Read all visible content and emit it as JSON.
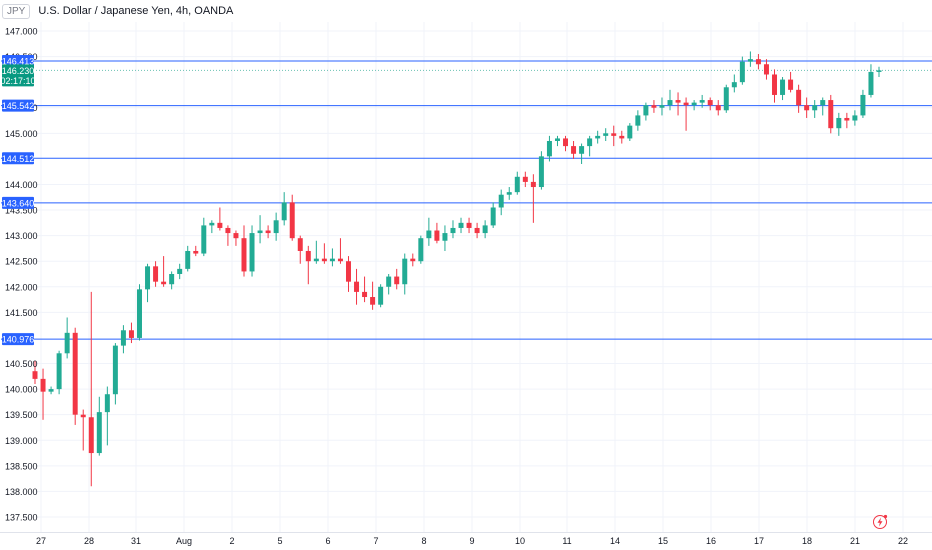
{
  "header": {
    "symbol_short": "JPY",
    "title": "U.S. Dollar / Japanese Yen, 4h, OANDA"
  },
  "colors": {
    "up": "#22ab94",
    "down": "#f23645",
    "hline": "#2962ff",
    "grid": "#f0f3fa",
    "axis_text": "#131722",
    "price_tag": "#089981"
  },
  "icons": [
    "lightning-icon"
  ],
  "chart_data": {
    "type": "candlestick",
    "y_ticks": [
      "147.000",
      "146.500",
      "145.500",
      "145.000",
      "144.000",
      "143.500",
      "143.000",
      "142.500",
      "142.000",
      "141.500",
      "140.500",
      "140.000",
      "139.500",
      "139.000",
      "138.500",
      "138.000",
      "137.500"
    ],
    "x_ticks": [
      "27",
      "28",
      "31",
      "Aug",
      "2",
      "5",
      "6",
      "7",
      "8",
      "9",
      "10",
      "11",
      "14",
      "15",
      "16",
      "17",
      "18",
      "21",
      "22"
    ],
    "horizontal_lines": [
      {
        "value": 146.413,
        "label": "146.413"
      },
      {
        "value": 145.542,
        "label": "145.542"
      },
      {
        "value": 144.512,
        "label": "144.512"
      },
      {
        "value": 143.64,
        "label": "143.640"
      },
      {
        "value": 140.976,
        "label": "140.976"
      }
    ],
    "current_price": {
      "value": 146.23,
      "label": "146.230",
      "countdown": "02:17:10"
    },
    "candles": [
      [
        140.35,
        140.55,
        140.1,
        140.2
      ],
      [
        140.2,
        140.4,
        139.4,
        139.95
      ],
      [
        139.95,
        140.05,
        139.9,
        140.0
      ],
      [
        140.0,
        140.75,
        139.9,
        140.7
      ],
      [
        140.7,
        141.4,
        140.6,
        141.1
      ],
      [
        141.1,
        141.2,
        139.3,
        139.5
      ],
      [
        139.5,
        139.6,
        138.8,
        139.45
      ],
      [
        139.45,
        141.9,
        138.1,
        138.75
      ],
      [
        138.75,
        139.85,
        138.7,
        139.55
      ],
      [
        139.55,
        140.05,
        138.9,
        139.9
      ],
      [
        139.9,
        140.9,
        139.7,
        140.85
      ],
      [
        140.85,
        141.25,
        140.7,
        141.15
      ],
      [
        141.15,
        141.3,
        140.9,
        141.0
      ],
      [
        141.0,
        142.05,
        140.95,
        141.95
      ],
      [
        141.95,
        142.45,
        141.7,
        142.4
      ],
      [
        142.4,
        142.5,
        142.0,
        142.1
      ],
      [
        142.1,
        142.6,
        142.0,
        142.05
      ],
      [
        142.05,
        142.3,
        141.95,
        142.25
      ],
      [
        142.25,
        142.45,
        142.15,
        142.35
      ],
      [
        142.35,
        142.8,
        142.3,
        142.7
      ],
      [
        142.7,
        142.8,
        142.6,
        142.65
      ],
      [
        142.65,
        143.35,
        142.6,
        143.2
      ],
      [
        143.2,
        143.3,
        143.05,
        143.25
      ],
      [
        143.25,
        143.55,
        143.1,
        143.15
      ],
      [
        143.15,
        143.2,
        142.8,
        143.05
      ],
      [
        143.05,
        143.1,
        142.8,
        142.95
      ],
      [
        142.95,
        143.2,
        142.2,
        142.3
      ],
      [
        142.3,
        143.2,
        142.2,
        143.05
      ],
      [
        143.05,
        143.4,
        142.85,
        143.1
      ],
      [
        143.1,
        143.2,
        142.95,
        143.05
      ],
      [
        143.05,
        143.45,
        142.9,
        143.3
      ],
      [
        143.3,
        143.85,
        143.2,
        143.65
      ],
      [
        143.65,
        143.8,
        142.9,
        142.95
      ],
      [
        142.95,
        143.0,
        142.45,
        142.7
      ],
      [
        142.7,
        142.8,
        142.05,
        142.5
      ],
      [
        142.5,
        142.9,
        142.45,
        142.55
      ],
      [
        142.55,
        142.85,
        142.45,
        142.5
      ],
      [
        142.5,
        142.75,
        142.4,
        142.55
      ],
      [
        142.55,
        142.95,
        142.45,
        142.5
      ],
      [
        142.5,
        142.6,
        141.9,
        142.1
      ],
      [
        142.1,
        142.35,
        141.65,
        141.9
      ],
      [
        141.9,
        142.2,
        141.7,
        141.8
      ],
      [
        141.8,
        142.1,
        141.55,
        141.65
      ],
      [
        141.65,
        142.05,
        141.6,
        142.0
      ],
      [
        142.0,
        142.25,
        141.85,
        142.2
      ],
      [
        142.2,
        142.35,
        141.95,
        142.05
      ],
      [
        142.05,
        142.65,
        141.85,
        142.55
      ],
      [
        142.55,
        142.65,
        142.4,
        142.5
      ],
      [
        142.5,
        143.0,
        142.45,
        142.95
      ],
      [
        142.95,
        143.35,
        142.8,
        143.1
      ],
      [
        143.1,
        143.25,
        142.85,
        142.9
      ],
      [
        142.9,
        143.2,
        142.7,
        143.05
      ],
      [
        143.05,
        143.3,
        142.95,
        143.15
      ],
      [
        143.15,
        143.35,
        143.05,
        143.25
      ],
      [
        143.25,
        143.35,
        143.05,
        143.15
      ],
      [
        143.15,
        143.25,
        142.95,
        143.05
      ],
      [
        143.05,
        143.3,
        142.95,
        143.2
      ],
      [
        143.2,
        143.65,
        143.15,
        143.55
      ],
      [
        143.55,
        143.9,
        143.4,
        143.8
      ],
      [
        143.8,
        143.95,
        143.7,
        143.85
      ],
      [
        143.85,
        144.25,
        143.8,
        144.15
      ],
      [
        144.15,
        144.25,
        143.95,
        144.05
      ],
      [
        144.05,
        144.2,
        143.25,
        143.95
      ],
      [
        143.95,
        144.65,
        143.9,
        144.55
      ],
      [
        144.55,
        144.95,
        144.45,
        144.85
      ],
      [
        144.85,
        144.95,
        144.75,
        144.9
      ],
      [
        144.9,
        144.95,
        144.65,
        144.75
      ],
      [
        144.75,
        144.85,
        144.5,
        144.6
      ],
      [
        144.6,
        144.8,
        144.4,
        144.75
      ],
      [
        144.75,
        144.95,
        144.55,
        144.9
      ],
      [
        144.9,
        145.05,
        144.8,
        144.95
      ],
      [
        144.95,
        145.1,
        144.85,
        145.0
      ],
      [
        145.0,
        145.15,
        144.75,
        144.95
      ],
      [
        144.95,
        145.05,
        144.8,
        144.9
      ],
      [
        144.9,
        145.2,
        144.85,
        145.15
      ],
      [
        145.15,
        145.45,
        145.05,
        145.35
      ],
      [
        145.35,
        145.6,
        145.25,
        145.55
      ],
      [
        145.55,
        145.65,
        145.4,
        145.5
      ],
      [
        145.5,
        145.7,
        145.35,
        145.55
      ],
      [
        145.55,
        145.85,
        145.45,
        145.65
      ],
      [
        145.65,
        145.8,
        145.35,
        145.6
      ],
      [
        145.6,
        145.7,
        145.05,
        145.55
      ],
      [
        145.55,
        145.65,
        145.45,
        145.6
      ],
      [
        145.6,
        145.75,
        145.5,
        145.65
      ],
      [
        145.65,
        145.7,
        145.45,
        145.55
      ],
      [
        145.55,
        145.65,
        145.35,
        145.45
      ],
      [
        145.45,
        145.95,
        145.4,
        145.9
      ],
      [
        145.9,
        146.15,
        145.8,
        146.0
      ],
      [
        146.0,
        146.5,
        145.95,
        146.4
      ],
      [
        146.4,
        146.6,
        146.3,
        146.45
      ],
      [
        146.45,
        146.55,
        146.25,
        146.35
      ],
      [
        146.35,
        146.45,
        146.05,
        146.15
      ],
      [
        146.15,
        146.25,
        145.6,
        145.75
      ],
      [
        145.75,
        146.1,
        145.65,
        146.05
      ],
      [
        146.05,
        146.2,
        145.8,
        145.85
      ],
      [
        145.85,
        145.95,
        145.4,
        145.55
      ],
      [
        145.55,
        145.7,
        145.3,
        145.45
      ],
      [
        145.45,
        145.65,
        145.3,
        145.55
      ],
      [
        145.55,
        145.7,
        145.35,
        145.65
      ],
      [
        145.65,
        145.75,
        145.0,
        145.1
      ],
      [
        145.1,
        145.4,
        144.95,
        145.3
      ],
      [
        145.3,
        145.4,
        145.1,
        145.25
      ],
      [
        145.25,
        145.45,
        145.15,
        145.35
      ],
      [
        145.35,
        145.85,
        145.3,
        145.75
      ],
      [
        145.75,
        146.35,
        145.7,
        146.2
      ],
      [
        146.2,
        146.3,
        146.1,
        146.23
      ]
    ]
  }
}
